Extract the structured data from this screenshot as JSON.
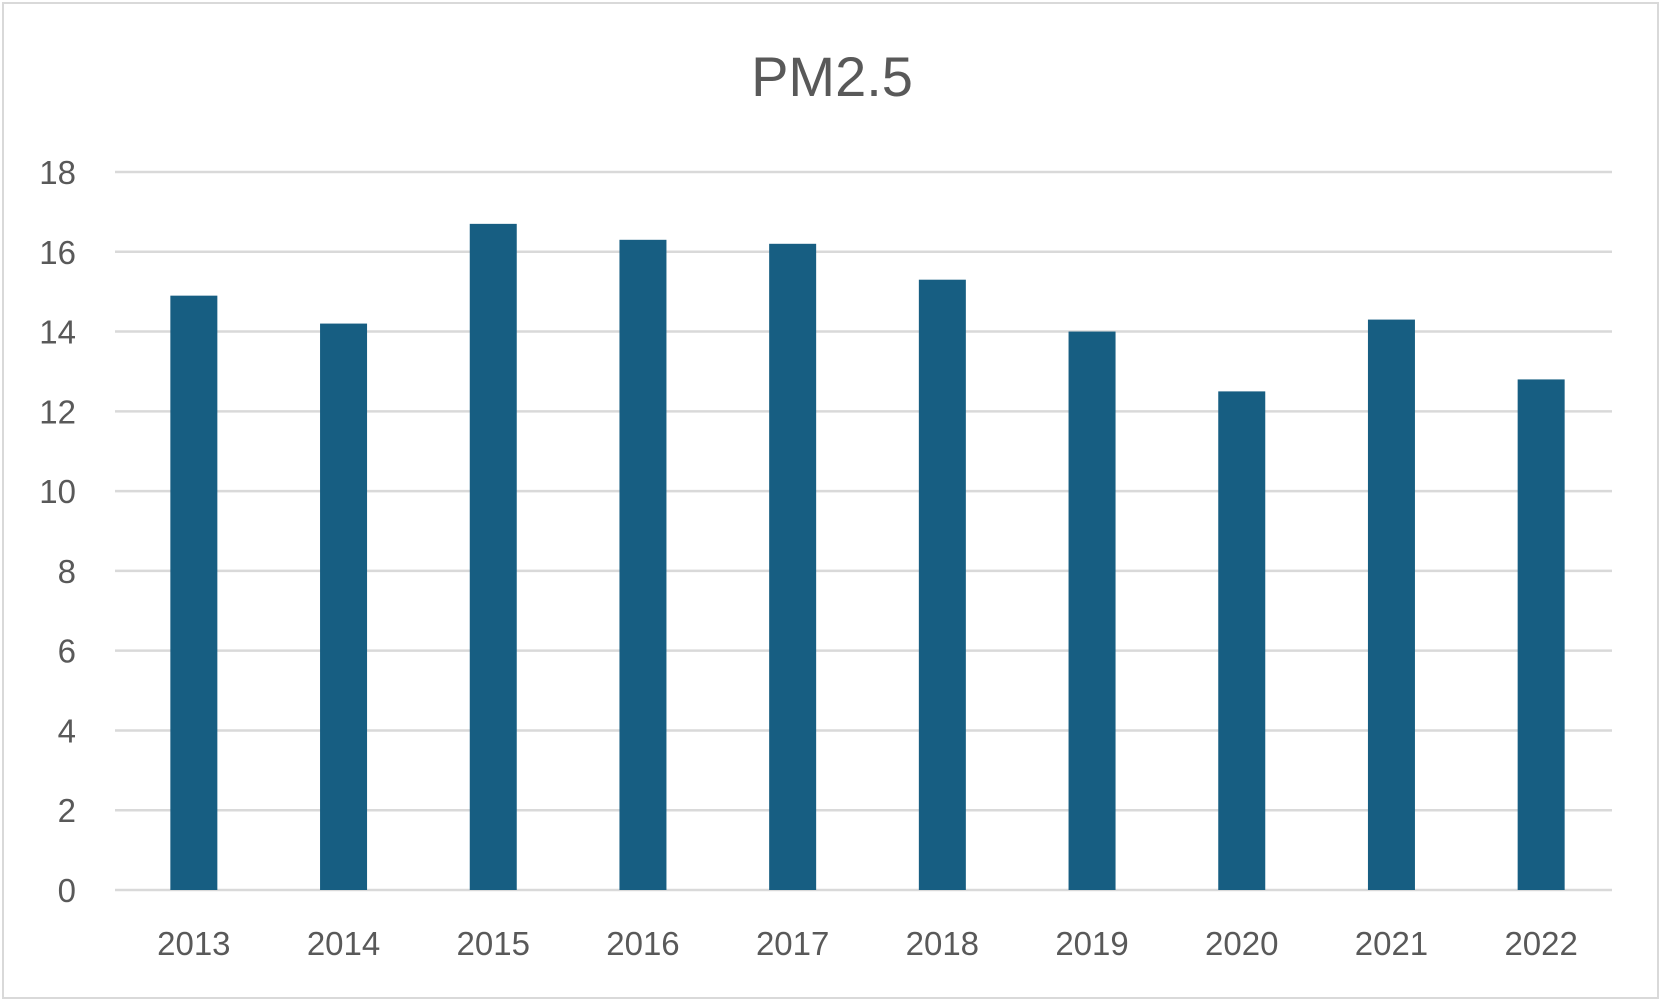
{
  "chart_data": {
    "type": "bar",
    "title": "PM2.5",
    "xlabel": "",
    "ylabel": "",
    "categories": [
      "2013",
      "2014",
      "2015",
      "2016",
      "2017",
      "2018",
      "2019",
      "2020",
      "2021",
      "2022"
    ],
    "values": [
      14.9,
      14.2,
      16.7,
      16.3,
      16.2,
      15.3,
      14.0,
      12.5,
      14.3,
      12.8
    ],
    "ylim": [
      0,
      18
    ],
    "yticks": [
      "0",
      "2",
      "4",
      "6",
      "8",
      "10",
      "12",
      "14",
      "16",
      "18"
    ],
    "grid": true,
    "legend": "none",
    "bar_color": "#175e82",
    "grid_color": "#d9d9d9",
    "text_color": "#595959"
  }
}
